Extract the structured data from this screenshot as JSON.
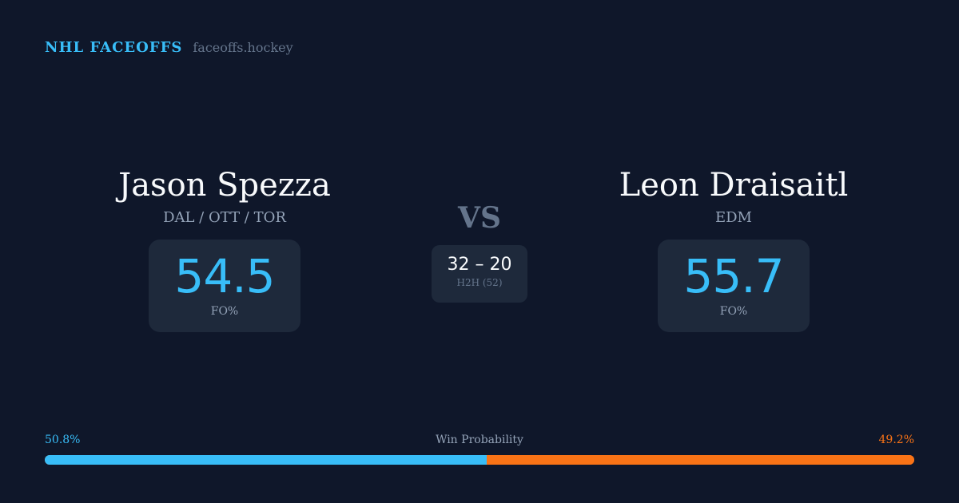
{
  "brand": {
    "name": "NHL FACEOFFS",
    "url": "faceoffs.hockey"
  },
  "left": {
    "name": "Jason Spezza",
    "teams": "DAL / OTT / TOR",
    "fo_pct": "54.5",
    "fo_label": "FO%"
  },
  "right": {
    "name": "Leon Draisaitl",
    "teams": "EDM",
    "fo_pct": "55.7",
    "fo_label": "FO%"
  },
  "vs": "VS",
  "h2h": {
    "score": "32 – 20",
    "label": "H2H (52)"
  },
  "probability": {
    "label": "Win Probability",
    "left": "50.8%",
    "right": "49.2%",
    "left_value": 50.8,
    "right_value": 49.2
  },
  "colors": {
    "background": "#0f172a",
    "left_accent": "#38bdf8",
    "right_accent": "#f97316",
    "card": "#1e293b"
  }
}
